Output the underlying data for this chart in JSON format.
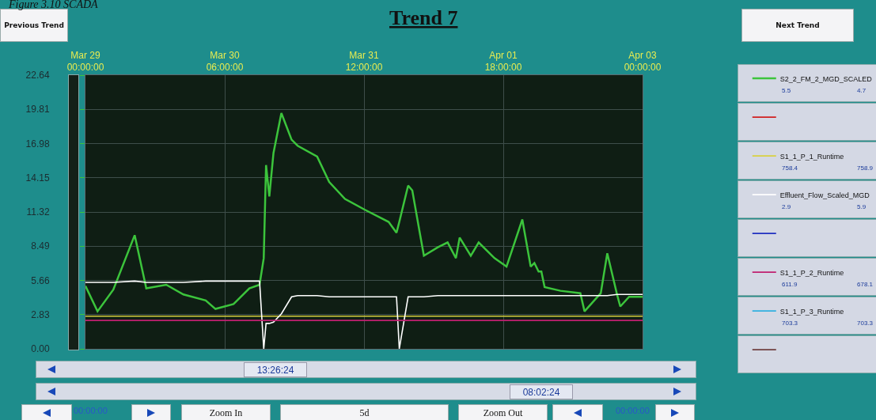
{
  "chart_data": {
    "type": "line",
    "title": "Trend 7",
    "x": [
      "--03-29T00:00",
      "--03-29T02:36",
      "--03-29T06:00",
      "--03-29T10:36",
      "--03-29T13:06",
      "--03-29T17:24",
      "--03-29T21:06",
      "--03-30T01:54",
      "--03-30T04:00",
      "--03-30T07:54",
      "--03-30T11:18",
      "--03-30T13:30",
      "--03-30T14:24",
      "--03-30T14:54",
      "--03-30T15:36",
      "--03-30T16:30",
      "--03-30T18:12",
      "--03-30T20:24",
      "--03-30T21:42",
      "--03-31T01:54",
      "--03-31T04:30",
      "--03-31T07:54",
      "--03-31T12:12",
      "--03-31T17:18",
      "--03-31T19:00",
      "--03-31T19:36",
      "--03-31T21:30",
      "--03-31T22:24",
      "--04-01T00:06",
      "--04-01T00:54",
      "--04-01T03:54",
      "--04-01T06:00",
      "--04-01T07:48",
      "--04-01T08:36",
      "--04-01T11:00",
      "--04-01T12:42",
      "--04-01T16:06",
      "--04-01T18:42",
      "--04-01T22:06",
      "--04-01T23:54",
      "--04-02T00:42",
      "--04-02T01:36",
      "--04-02T02:12",
      "--04-02T02:54",
      "--04-02T06:18",
      "--04-02T10:36",
      "--04-02T11:30",
      "--04-02T15:00",
      "--04-02T16:24",
      "--04-02T18:30",
      "--04-02T19:12",
      "--04-02T21:06",
      "--04-02T22:48",
      "--04-03T00:00"
    ],
    "xlim": [
      "--03-29T00:00",
      "--04-03T00:00"
    ],
    "xticks": [
      {
        "value": "--03-29T00:00",
        "label": "Mar 29\n00:00:00"
      },
      {
        "value": "--03-30T06:00",
        "label": "Mar 30\n06:00:00"
      },
      {
        "value": "--03-31T12:00",
        "label": "Mar 31\n12:00:00"
      },
      {
        "value": "--04-01T18:00",
        "label": "Apr 01\n18:00:00"
      },
      {
        "value": "--04-03T00:00",
        "label": "Apr 03\n00:00:00"
      }
    ],
    "ylim": [
      0,
      22.64
    ],
    "yticks": [
      {
        "value": 0,
        "label": "0.00"
      },
      2.83,
      5.66,
      8.49,
      11.32,
      14.15,
      16.98,
      19.81,
      22.64
    ],
    "grid": true,
    "legend": "right",
    "marker": "none",
    "line_style": "solid",
    "series": [
      {
        "name": "S2_2_FM_2_MGD_SCALED",
        "color": "#3cc43c",
        "values": [
          5.2,
          3.1,
          4.9,
          9.4,
          5.0,
          5.3,
          4.5,
          4.0,
          3.3,
          3.7,
          5.0,
          5.3,
          7.5,
          15.2,
          12.6,
          16.2,
          19.5,
          17.3,
          16.8,
          15.9,
          13.8,
          12.4,
          11.5,
          10.5,
          9.6,
          10.5,
          13.5,
          13.1,
          9.4,
          7.7,
          8.4,
          8.8,
          7.5,
          9.2,
          7.7,
          8.8,
          7.5,
          6.8,
          10.7,
          6.8,
          7.1,
          6.4,
          6.4,
          5.1,
          4.8,
          4.6,
          3.1,
          4.6,
          7.9,
          4.5,
          3.5,
          4.3,
          4.3,
          4.3
        ]
      },
      {
        "color": "#d02020",
        "values": [
          null,
          null,
          null,
          null,
          null,
          null,
          null,
          null,
          null,
          null,
          null,
          null,
          null,
          null,
          null,
          null,
          null,
          null,
          null,
          null,
          null,
          null,
          null,
          null,
          null,
          null,
          null,
          null,
          null,
          null,
          null,
          null,
          null,
          null,
          null,
          null,
          null,
          null,
          null,
          null,
          null,
          null,
          null,
          null,
          null,
          null,
          null,
          null,
          null,
          null,
          null,
          null,
          null,
          null
        ]
      },
      {
        "name": "S1_1_P_1_Runtime",
        "color": "#d8d040",
        "values": [
          2.7,
          2.7,
          2.7,
          2.7,
          2.7,
          2.7,
          2.7,
          2.7,
          2.7,
          2.7,
          2.7,
          2.7,
          2.7,
          2.7,
          2.7,
          2.7,
          2.7,
          2.7,
          2.7,
          2.7,
          2.7,
          2.7,
          2.7,
          2.7,
          2.7,
          2.7,
          2.7,
          2.7,
          2.7,
          2.7,
          2.7,
          2.7,
          2.7,
          2.7,
          2.7,
          2.7,
          2.7,
          2.7,
          2.7,
          2.7,
          2.7,
          2.7,
          2.7,
          2.7,
          2.7,
          2.7,
          2.7,
          2.7,
          2.7,
          2.7,
          2.7,
          2.7,
          2.7,
          2.7
        ]
      },
      {
        "name": "Effluent_Flow_Scaled_MGD",
        "color": "#ffffff",
        "values": [
          5.5,
          5.5,
          5.5,
          5.6,
          5.5,
          5.5,
          5.5,
          5.6,
          5.6,
          5.6,
          5.6,
          5.6,
          0,
          2.1,
          2.1,
          2.2,
          2.9,
          4.3,
          4.4,
          4.4,
          4.3,
          4.3,
          4.3,
          4.3,
          4.3,
          0,
          4.3,
          4.3,
          4.3,
          4.3,
          4.4,
          4.4,
          4.4,
          4.4,
          4.4,
          4.4,
          4.4,
          4.4,
          4.4,
          4.4,
          4.4,
          4.4,
          4.4,
          4.4,
          4.4,
          4.4,
          4.4,
          4.4,
          4.4,
          4.5,
          4.5,
          4.5,
          4.5,
          4.5
        ]
      },
      {
        "color": "#2030c0",
        "values": [
          null,
          null,
          null,
          null,
          null,
          null,
          null,
          null,
          null,
          null,
          null,
          null,
          null,
          null,
          null,
          null,
          null,
          null,
          null,
          null,
          null,
          null,
          null,
          null,
          null,
          null,
          null,
          null,
          null,
          null,
          null,
          null,
          null,
          null,
          null,
          null,
          null,
          null,
          null,
          null,
          null,
          null,
          null,
          null,
          null,
          null,
          null,
          null,
          null,
          null,
          null,
          null,
          null,
          null
        ]
      },
      {
        "name": "S1_1_P_2_Runtime",
        "color": "#c02070",
        "values": [
          2.35,
          2.35,
          2.35,
          2.35,
          2.35,
          2.35,
          2.35,
          2.35,
          2.35,
          2.35,
          2.35,
          2.35,
          2.35,
          2.35,
          2.35,
          2.35,
          2.35,
          2.35,
          2.35,
          2.35,
          2.35,
          2.35,
          2.35,
          2.35,
          2.35,
          2.35,
          2.35,
          2.35,
          2.35,
          2.35,
          2.35,
          2.35,
          2.35,
          2.35,
          2.35,
          2.35,
          2.35,
          2.35,
          2.35,
          2.35,
          2.35,
          2.35,
          2.35,
          2.35,
          2.35,
          2.35,
          2.35,
          2.35,
          2.35,
          2.35,
          2.35,
          2.35,
          2.35,
          2.35
        ]
      },
      {
        "name": "S1_1_P_3_Runtime",
        "color": "#30b0e0",
        "values": [
          null,
          null,
          null,
          null,
          null,
          null,
          null,
          null,
          null,
          null,
          null,
          null,
          null,
          null,
          null,
          null,
          null,
          null,
          null,
          null,
          null,
          null,
          null,
          null,
          null,
          null,
          null,
          null,
          null,
          null,
          null,
          null,
          null,
          null,
          null,
          null,
          null,
          null,
          null,
          null,
          null,
          null,
          null,
          null,
          null,
          null,
          null,
          null,
          null,
          null,
          null,
          null,
          null,
          null
        ]
      },
      {
        "color": "#704040",
        "values": [
          null,
          null,
          null,
          null,
          null,
          null,
          null,
          null,
          null,
          null,
          null,
          null,
          null,
          null,
          null,
          null,
          null,
          null,
          null,
          null,
          null,
          null,
          null,
          null,
          null,
          null,
          null,
          null,
          null,
          null,
          null,
          null,
          null,
          null,
          null,
          null,
          null,
          null,
          null,
          null,
          null,
          null,
          null,
          null,
          null,
          null,
          null,
          null,
          null,
          null,
          null,
          null,
          null,
          null
        ]
      }
    ],
    "annotations": [
      "Figure 3.10 SCADA",
      "Previous Trend",
      "Next Trend",
      "13:26:24",
      "08:02:24",
      "00:00:00",
      "Zoom In",
      "5d",
      "Zoom Out",
      "00:00:00",
      "5.5",
      "4.7",
      "758.4",
      "758.9",
      "2.9",
      "5.9",
      "611.9",
      "678.1",
      "703.3",
      "703.3"
    ]
  }
}
